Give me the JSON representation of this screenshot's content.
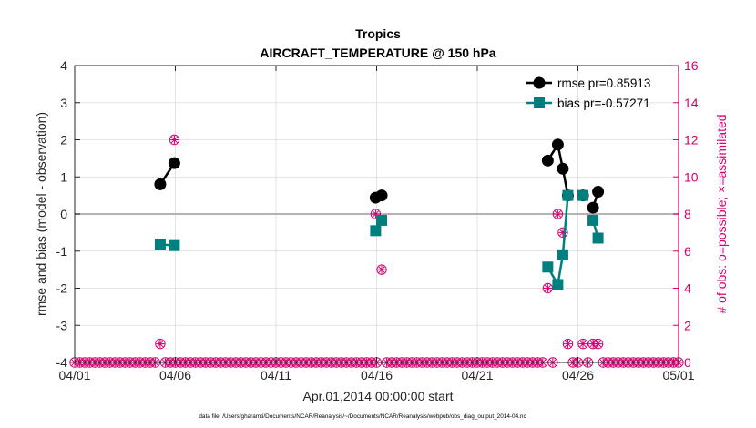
{
  "chart_data": {
    "type": "scatter",
    "title": "Tropics",
    "subtitle": "AIRCRAFT_TEMPERATURE @ 150 hPa",
    "xlabel": "Apr.01,2014 00:00:00 start",
    "ylabel": "rmse and bias (model - observation)",
    "y2label": "# of obs: o=possible; ×=assimilated",
    "footnote": "data file: /Users/gharamti/Documents/NCAR/Reanalysis/~/Documents/NCAR/Reanalysis/webpub/obs_diag_output_2014-04.nc",
    "xlim": [
      1,
      31
    ],
    "ylim": [
      -4,
      4
    ],
    "y2lim": [
      0,
      16
    ],
    "grid": true,
    "legend_position": "top-right",
    "x_ticks": [
      {
        "value": 1,
        "label": "04/01"
      },
      {
        "value": 6,
        "label": "04/06"
      },
      {
        "value": 11,
        "label": "04/11"
      },
      {
        "value": 16,
        "label": "04/16"
      },
      {
        "value": 21,
        "label": "04/21"
      },
      {
        "value": 26,
        "label": "04/26"
      },
      {
        "value": 31,
        "label": "05/01"
      }
    ],
    "y_ticks": [
      {
        "value": -4,
        "label": "-4"
      },
      {
        "value": -3,
        "label": "-3"
      },
      {
        "value": -2,
        "label": "-2"
      },
      {
        "value": -1,
        "label": "-1"
      },
      {
        "value": 0,
        "label": "0"
      },
      {
        "value": 1,
        "label": "1"
      },
      {
        "value": 2,
        "label": "2"
      },
      {
        "value": 3,
        "label": "3"
      },
      {
        "value": 4,
        "label": "4"
      }
    ],
    "y2_ticks": [
      {
        "value": 0,
        "label": "0"
      },
      {
        "value": 2,
        "label": "2"
      },
      {
        "value": 4,
        "label": "4"
      },
      {
        "value": 6,
        "label": "6"
      },
      {
        "value": 8,
        "label": "8"
      },
      {
        "value": 10,
        "label": "10"
      },
      {
        "value": 12,
        "label": "12"
      },
      {
        "value": 14,
        "label": "14"
      },
      {
        "value": 16,
        "label": "16"
      }
    ],
    "series": [
      {
        "name": "rmse pr=0.85913",
        "color": "#000000",
        "marker": "circle",
        "points": [
          {
            "x": 5.25,
            "y": 0.8
          },
          {
            "x": 5.95,
            "y": 1.37
          },
          {
            "x": 15.95,
            "y": 0.44
          },
          {
            "x": 16.25,
            "y": 0.5
          },
          {
            "x": 24.5,
            "y": 1.44
          },
          {
            "x": 25.0,
            "y": 1.87
          },
          {
            "x": 25.25,
            "y": 1.22
          },
          {
            "x": 25.5,
            "y": 0.5
          },
          {
            "x": 26.25,
            "y": 0.5
          },
          {
            "x": 26.75,
            "y": 0.17
          },
          {
            "x": 27.0,
            "y": 0.6
          }
        ],
        "segments": [
          [
            5.25,
            5.95
          ],
          [
            15.95,
            16.25
          ],
          [
            24.5,
            25.5
          ],
          [
            26.75,
            27.0
          ]
        ]
      },
      {
        "name": "bias pr=-0.57271",
        "color": "#007f7f",
        "marker": "square",
        "points": [
          {
            "x": 5.25,
            "y": -0.82
          },
          {
            "x": 5.95,
            "y": -0.85
          },
          {
            "x": 15.95,
            "y": -0.45
          },
          {
            "x": 16.25,
            "y": -0.17
          },
          {
            "x": 24.5,
            "y": -1.43
          },
          {
            "x": 25.0,
            "y": -1.9
          },
          {
            "x": 25.25,
            "y": -1.1
          },
          {
            "x": 25.5,
            "y": 0.5
          },
          {
            "x": 26.25,
            "y": 0.5
          },
          {
            "x": 26.75,
            "y": -0.17
          },
          {
            "x": 27.0,
            "y": -0.65
          }
        ],
        "segments": [
          [
            5.25,
            5.95
          ],
          [
            15.95,
            16.25
          ],
          [
            24.5,
            25.5
          ],
          [
            26.75,
            27.0
          ]
        ]
      }
    ],
    "obs_counts": {
      "name": "# of obs",
      "color": "#d6006f",
      "x_start": 1.0,
      "x_step": 0.25,
      "default_value": 0,
      "nonzero": [
        {
          "x": 5.25,
          "possible": 1,
          "assimilated": 1
        },
        {
          "x": 5.95,
          "possible": 12,
          "assimilated": 12
        },
        {
          "x": 15.95,
          "possible": 8,
          "assimilated": 8
        },
        {
          "x": 16.25,
          "possible": 5,
          "assimilated": 5
        },
        {
          "x": 24.5,
          "possible": 4,
          "assimilated": 4
        },
        {
          "x": 25.0,
          "possible": 8,
          "assimilated": 8
        },
        {
          "x": 25.25,
          "possible": 7,
          "assimilated": 7
        },
        {
          "x": 25.5,
          "possible": 1,
          "assimilated": 1
        },
        {
          "x": 26.25,
          "possible": 1,
          "assimilated": 1
        },
        {
          "x": 26.75,
          "possible": 1,
          "assimilated": 1
        },
        {
          "x": 27.0,
          "possible": 1,
          "assimilated": 1
        }
      ]
    }
  }
}
